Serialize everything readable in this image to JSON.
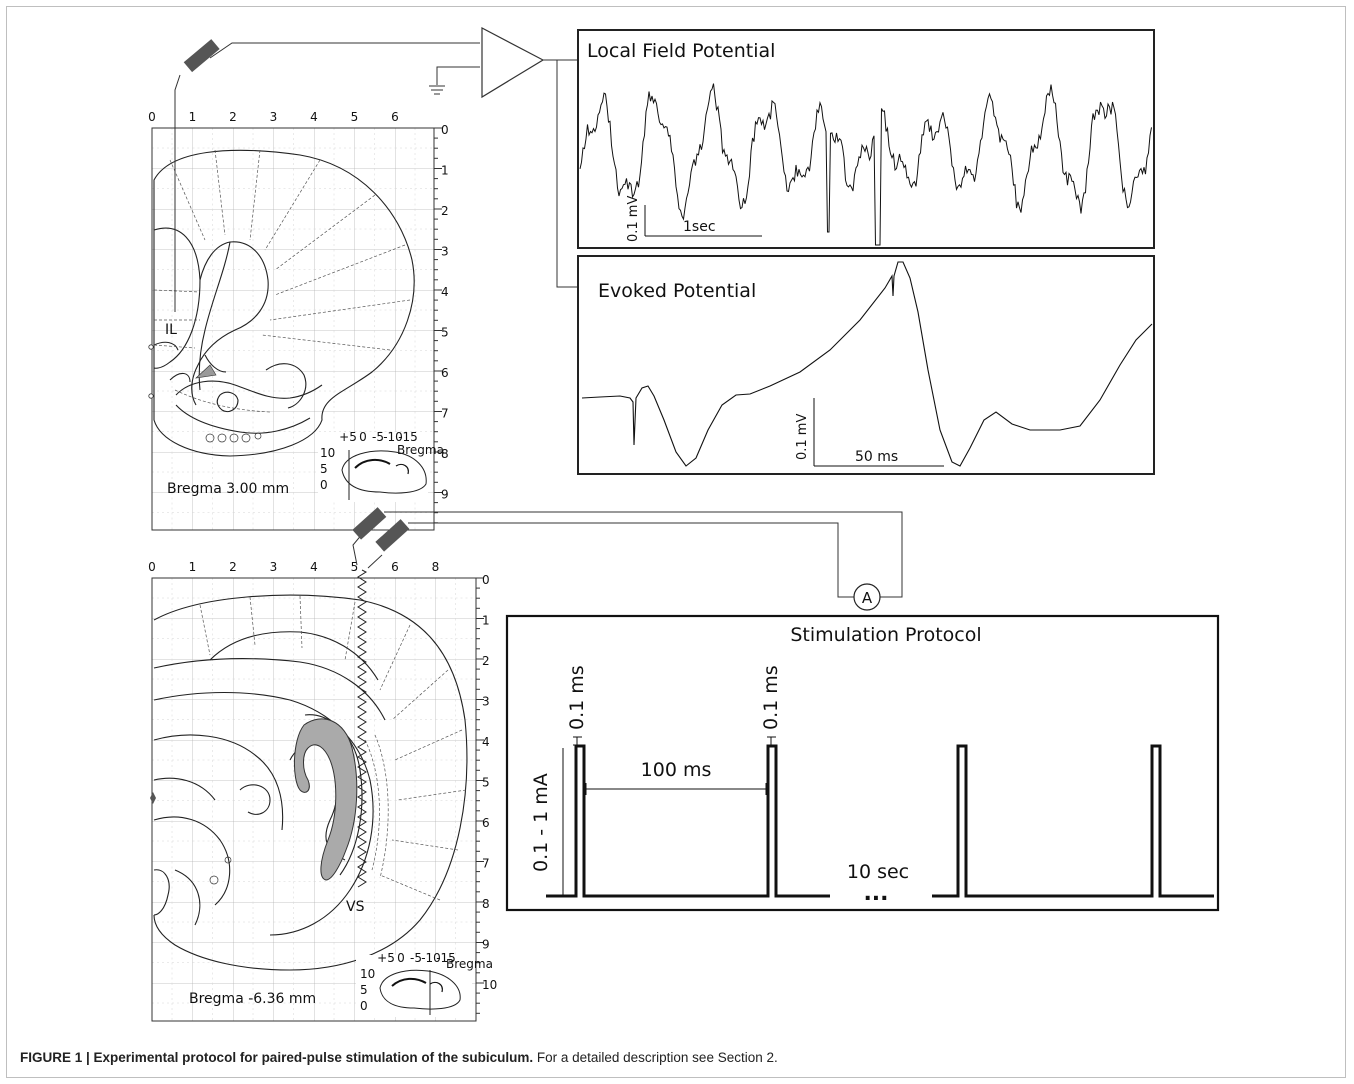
{
  "lfp": {
    "title": "Local Field Potential",
    "scale_v": "0.1 mV",
    "scale_t": "1sec"
  },
  "ep": {
    "title": "Evoked Potential",
    "scale_v": "0.1 mV",
    "scale_t": "50 ms"
  },
  "atlas_top": {
    "x_ticks": [
      "0",
      "1",
      "2",
      "3",
      "4",
      "5",
      "6"
    ],
    "y_ticks": [
      "0",
      "1",
      "2",
      "3",
      "4",
      "5",
      "6",
      "7",
      "8",
      "9"
    ],
    "region": "IL",
    "bregma": "Bregma 3.00 mm",
    "inset_ticks": [
      "+5",
      "0",
      "-5",
      "-10",
      "-15"
    ],
    "inset_side": [
      "10",
      "5",
      "0"
    ],
    "inset_label": "Bregma"
  },
  "atlas_bottom": {
    "x_ticks": [
      "0",
      "1",
      "2",
      "3",
      "4",
      "5",
      "6",
      "8"
    ],
    "y_ticks": [
      "0",
      "1",
      "2",
      "3",
      "4",
      "5",
      "6",
      "7",
      "8",
      "9",
      "10"
    ],
    "region": "VS",
    "bregma": "Bregma -6.36 mm",
    "inset_ticks": [
      "+5",
      "0",
      "-5",
      "-10",
      "-15"
    ],
    "inset_side": [
      "10",
      "5",
      "0"
    ],
    "inset_label": "Bregma"
  },
  "amplifier_label": "A",
  "protocol": {
    "title": "Stimulation Protocol",
    "amplitude": "0.1 - 1 mA",
    "pulse_width_1": "0.1 ms",
    "pulse_width_2": "0.1 ms",
    "interval": "100 ms",
    "train_interval": "10 sec",
    "ellipsis": "..."
  },
  "caption": {
    "bold": "FIGURE 1 | Experimental protocol for paired-pulse stimulation of the subiculum.",
    "normal": " For a detailed description see Section 2."
  }
}
